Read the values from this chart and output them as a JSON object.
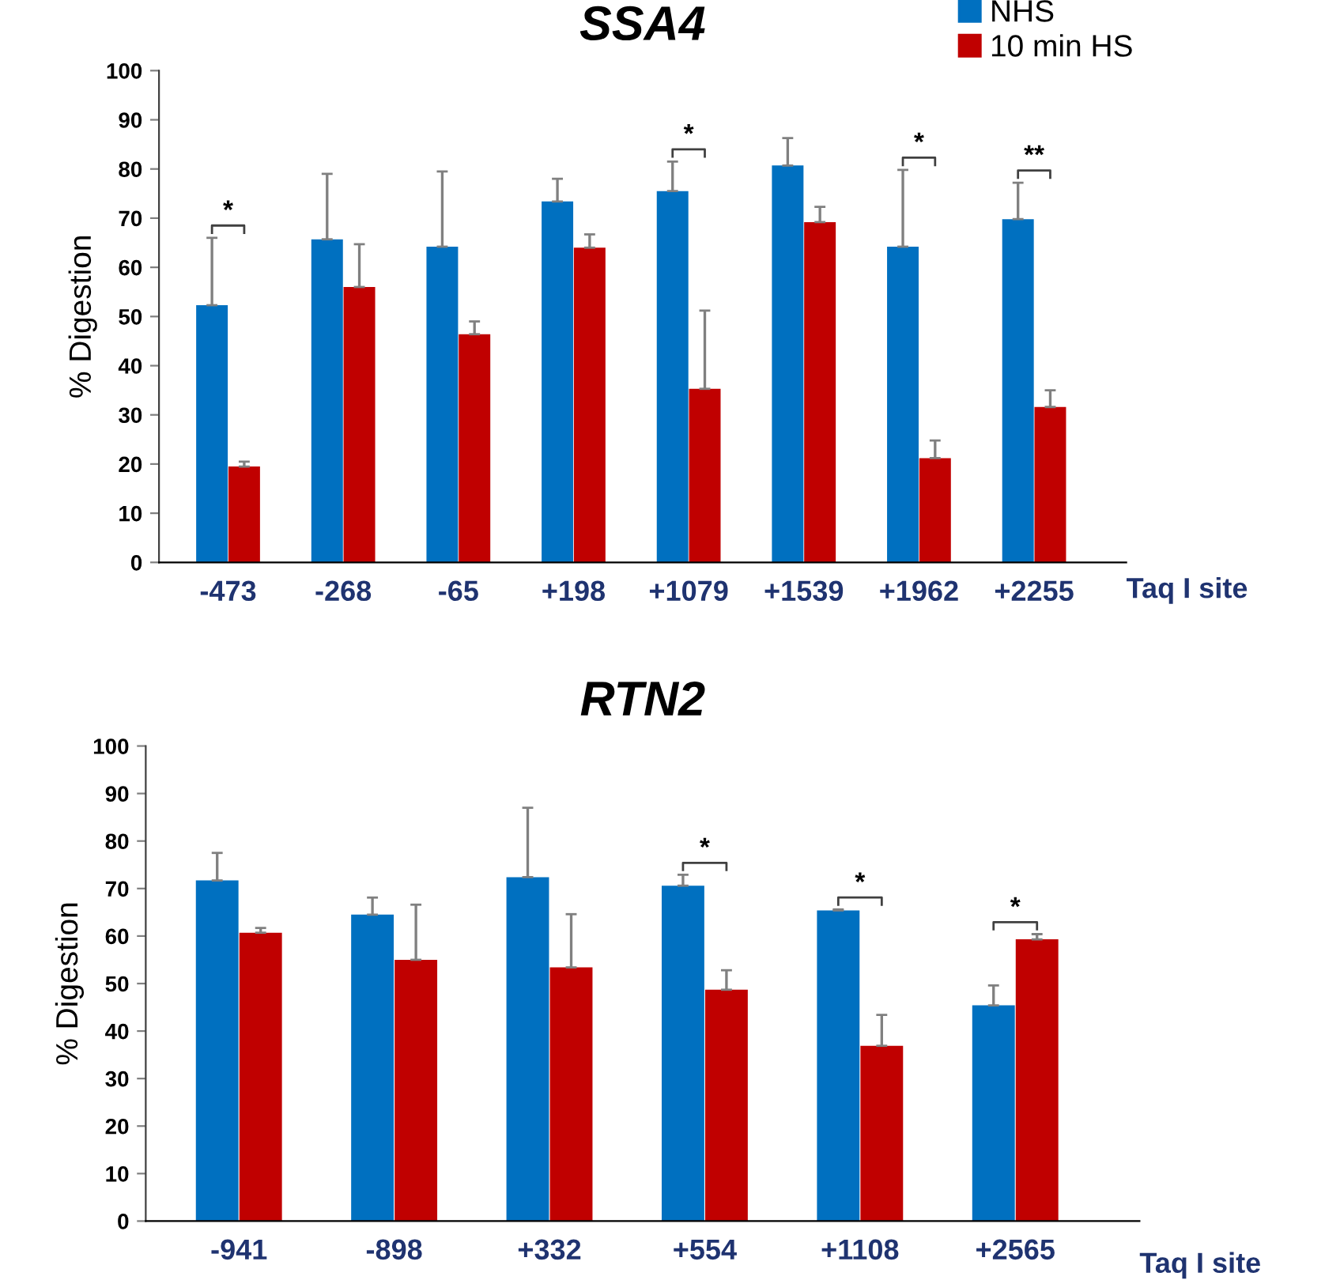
{
  "chart_data": [
    {
      "type": "bar",
      "title": "SSA4",
      "ylabel": "% Digestion",
      "xlabel": "Taq I site",
      "categories": [
        "-473",
        "-268",
        "-65",
        "+198",
        "+1079",
        "+1539",
        "+1962",
        "+2255"
      ],
      "ylim": [
        0,
        100
      ],
      "yticks": [
        0,
        10,
        20,
        30,
        40,
        50,
        60,
        70,
        80,
        90,
        100
      ],
      "grid": false,
      "legend": "top right",
      "series": [
        {
          "name": "NHS",
          "color": "#0070c0",
          "values": [
            52.3,
            65.7,
            64.2,
            73.4,
            75.5,
            80.7,
            64.2,
            69.8
          ],
          "errors": [
            [
              52.3,
              66
            ],
            [
              65.7,
              79
            ],
            [
              64.2,
              79.5
            ],
            [
              73.4,
              78
            ],
            [
              75.5,
              81.5
            ],
            [
              80.7,
              86.3
            ],
            [
              64.2,
              79.8
            ],
            [
              69.8,
              77.2
            ]
          ]
        },
        {
          "name": "10 min HS",
          "color": "#c00000",
          "values": [
            19.5,
            56,
            46.4,
            64,
            35.3,
            69.2,
            21.2,
            31.6
          ],
          "errors": [
            [
              19.5,
              20.5
            ],
            [
              56,
              64.7
            ],
            [
              46.4,
              49
            ],
            [
              64,
              66.7
            ],
            [
              35.3,
              51.2
            ],
            [
              69.2,
              72.3
            ],
            [
              21.2,
              24.8
            ],
            [
              31.6,
              35
            ]
          ]
        }
      ],
      "annotations": [
        "*",
        "*",
        "*",
        "**"
      ]
    },
    {
      "type": "bar",
      "title": "RTN2",
      "ylabel": "% Digestion",
      "xlabel": "Taq I site",
      "categories": [
        "-941",
        "-898",
        "+332",
        "+554",
        "+1108",
        "+2565"
      ],
      "ylim": [
        0,
        100
      ],
      "yticks": [
        0,
        10,
        20,
        30,
        40,
        50,
        60,
        70,
        80,
        90,
        100
      ],
      "grid": false,
      "series": [
        {
          "color": "#0070c0",
          "values": [
            71.7,
            64.5,
            72.4,
            70.6,
            65.4,
            45.4
          ],
          "errors": [
            [
              71.7,
              77.5
            ],
            [
              64.5,
              68.1
            ],
            [
              72.4,
              87
            ],
            [
              70.6,
              72.9
            ],
            [
              65.4,
              65.6
            ],
            [
              45.4,
              49.6
            ]
          ]
        },
        {
          "color": "#c00000",
          "values": [
            60.7,
            55,
            53.4,
            48.7,
            36.9,
            59.3
          ],
          "errors": [
            [
              60.7,
              61.7
            ],
            [
              55,
              66.6
            ],
            [
              53.4,
              64.6
            ],
            [
              48.7,
              52.8
            ],
            [
              36.9,
              43.4
            ],
            [
              59.3,
              60.4
            ]
          ]
        }
      ],
      "annotations": [
        "*",
        "*",
        "*"
      ]
    }
  ]
}
